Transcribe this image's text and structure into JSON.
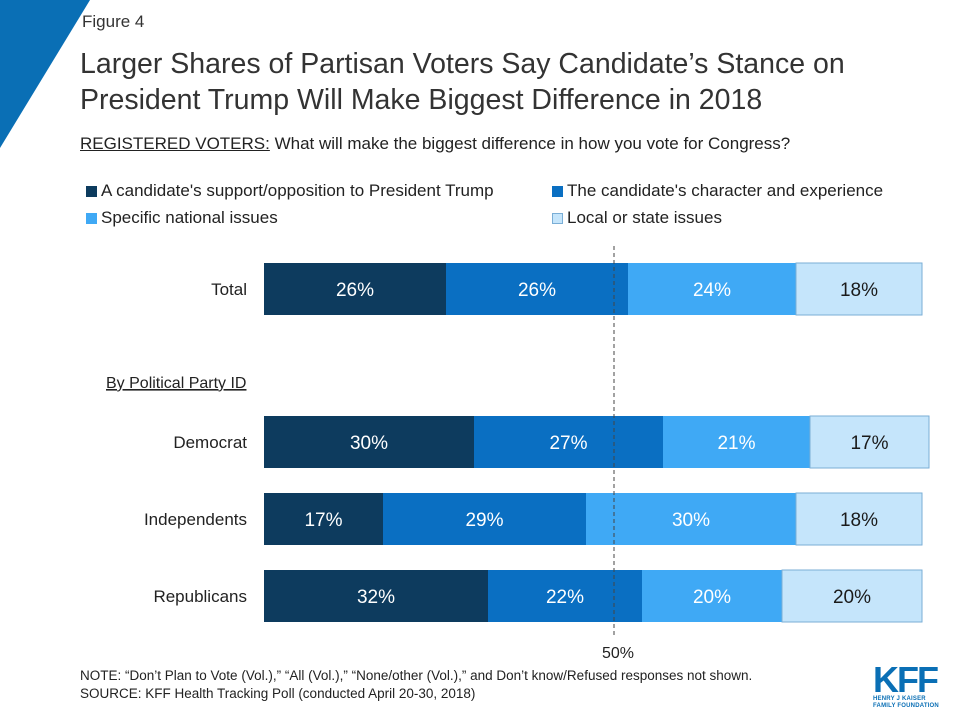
{
  "figure_label": "Figure 4",
  "subtitle_prefix": "REGISTERED VOTERS:",
  "subtitle_text": " What will make the biggest difference in how you vote for Congress?",
  "colors": {
    "trump": "#0d3b5e",
    "character": "#0a6fc2",
    "national": "#3fa9f5",
    "local": "#c5e5fb",
    "brand": "#0a6fb5"
  },
  "chart_data": {
    "type": "bar",
    "orientation": "horizontal",
    "stacked": true,
    "title": "Larger Shares of Partisan Voters Say Candidate’s Stance on President Trump Will Make Biggest Difference in 2018",
    "categories": [
      "Total",
      "Democrat",
      "Independents",
      "Republicans"
    ],
    "group_label": "By Political Party ID",
    "series": [
      {
        "name": "A candidate's support/opposition to President Trump",
        "values": [
          26,
          30,
          17,
          32
        ]
      },
      {
        "name": "The candidate's character and experience",
        "values": [
          26,
          27,
          29,
          22
        ]
      },
      {
        "name": "Specific national issues",
        "values": [
          24,
          21,
          30,
          20
        ]
      },
      {
        "name": "Local or state issues",
        "values": [
          18,
          17,
          18,
          20
        ]
      }
    ],
    "value_suffix": "%",
    "reference_line": {
      "value": 50,
      "label": "50%"
    },
    "xlim": [
      0,
      100
    ],
    "legend_position": "top",
    "grid": false
  },
  "note": "NOTE: “Don’t Plan to Vote (Vol.),” “All (Vol.),” “None/other (Vol.),” and Don’t know/Refused responses not shown.",
  "source": "SOURCE: KFF Health Tracking Poll (conducted April 20-30, 2018)",
  "logo": {
    "name": "KFF",
    "tagline_line1": "HENRY J KAISER",
    "tagline_line2": "FAMILY FOUNDATION"
  }
}
